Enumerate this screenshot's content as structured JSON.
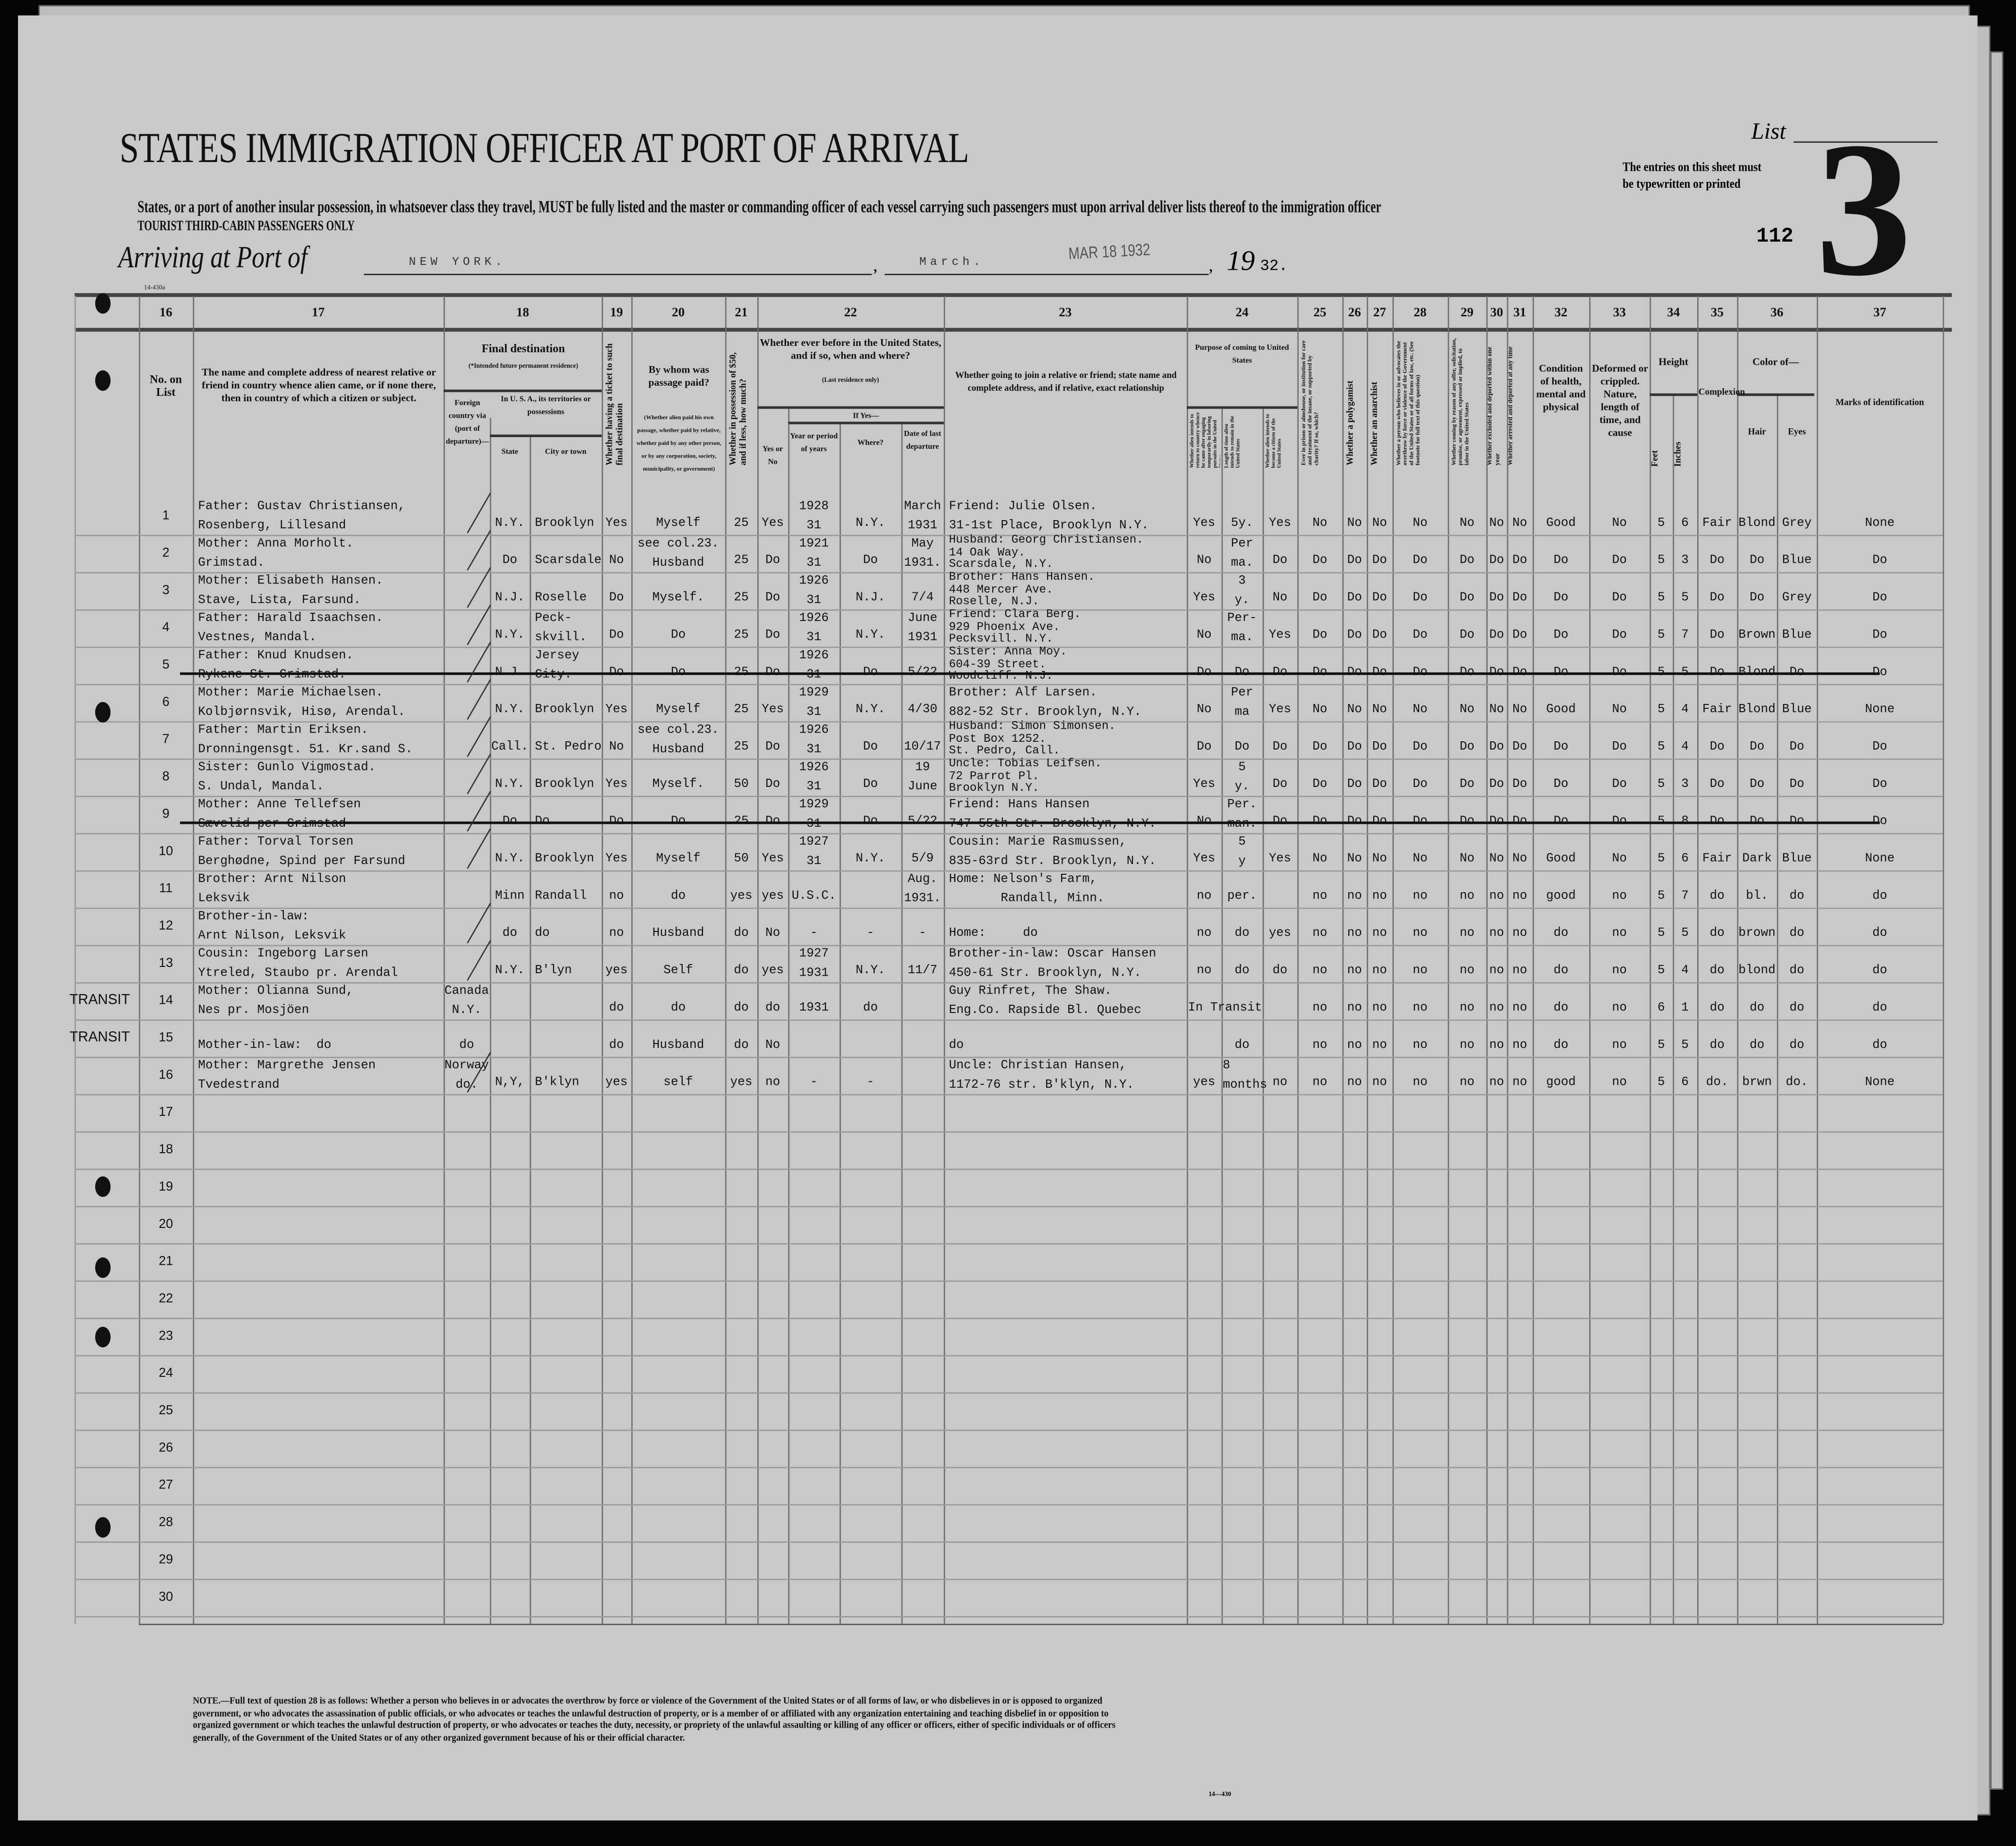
{
  "header": {
    "form_number_top": "14-430a",
    "title": "STATES IMMIGRATION OFFICER AT PORT OF ARRIVAL",
    "instruction": "States, or a port of another insular possession, in whatsoever class they travel, MUST be fully listed and the master or commanding officer of each vessel carrying such passengers must upon arrival deliver lists thereof to the immigration officer",
    "class_line": "TOURIST THIRD-CABIN PASSENGERS ONLY",
    "arriving_label": "Arriving at Port of",
    "port": "NEW YORK.",
    "month": "March.",
    "stamp": "MAR 18 1932",
    "year_prefix": "19",
    "year_suffix": "32.",
    "list_label": "List",
    "list_number": "3",
    "sheet_number": "112",
    "typewritten_note_1": "The entries on this sheet must",
    "typewritten_note_2": "be typewritten or printed"
  },
  "columns": {
    "numbers": [
      "16",
      "17",
      "18",
      "19",
      "20",
      "21",
      "22",
      "23",
      "24",
      "25",
      "26",
      "27",
      "28",
      "29",
      "30",
      "31",
      "32",
      "33",
      "34",
      "35",
      "36",
      "37"
    ],
    "c16": "No. on List",
    "c17": "The name and complete address of nearest relative or friend in country whence alien came, or if none there, then in country of which a citizen or subject.",
    "c18": "Final destination",
    "c18_sub": "(*Intended future permanent residence)",
    "c18_foreign": "Foreign country via (port of departure)—",
    "c18_usa": "In U. S. A., its territories or possessions",
    "c18_state": "State",
    "c18_city": "City or town",
    "c19": "Whether having a ticket to such final destination",
    "c20": "By whom was passage paid?",
    "c20_sub": "(Whether alien paid his own passage, whether paid by relative, whether paid by any other person, or by any corporation, society, municipality, or government)",
    "c21": "Whether in possession of $50, and if less, how much?",
    "c22": "Whether ever before in the United States, and if so, when and where?",
    "c22_sub": "(Last residence only)",
    "c22_yesno": "Yes or No",
    "c22_ifyes": "If Yes—",
    "c22_years": "Year or period of years",
    "c22_where": "Where?",
    "c22_date": "Date of last departure",
    "c23": "Whether going to join a relative or friend; state name and complete address, and if relative, exact relationship",
    "c24": "Purpose of coming to United States",
    "c24_a": "Whether alien intends to return to country whence he came after engaging temporarily in laboring pursuits in the United States",
    "c24_b": "Length of time alien intends to remain in the United States",
    "c24_c": "Whether alien intends to become a citizen of the United States",
    "c25": "Ever in prison or almshouse, or institution for care and treatment of the insane, or supported by charity? If so, which?",
    "c26": "Whether a polygamist",
    "c27": "Whether an anarchist",
    "c28": "Whether a person who believes in or advocates the overthrow by force or violence of the Government of the United States or of all forms of law, etc. (See footnote for full text of this question)",
    "c29": "Whether coming by reason of any offer, solicitation, promise, or agreement, expressed or implied, to labor in the United States",
    "c30": "Whether excluded and deported within one year",
    "c31": "Whether arrested and deported at any time",
    "c32": "Condition of health, mental and physical",
    "c33": "Deformed or crippled. Nature, length of time, and cause",
    "c34": "Height",
    "c34_feet": "Feet",
    "c34_inches": "Inches",
    "c35": "Complexion",
    "c36": "Color of—",
    "c36_hair": "Hair",
    "c36_eyes": "Eyes",
    "c37": "Marks of identification"
  },
  "rows": [
    {
      "no": "1",
      "relative": "Father: Gustav Christiansen,\nRosenberg, Lillesand",
      "foreign": "",
      "state": "N.Y.",
      "city": "Brooklyn",
      "ticket": "Yes",
      "paid_by": "Myself",
      "money": "25",
      "before": "Yes",
      "years": "1928\n31",
      "where": "N.Y.",
      "departed": "March\n1931",
      "joining": "Friend: Julie Olsen.\n31-1st Place, Brooklyn N.Y.",
      "p24_return": "Yes",
      "p24_length": "5y.",
      "p24_citizen": "Yes",
      "c25": "No",
      "c26": "No",
      "c27": "No",
      "c28": "No",
      "c29": "No",
      "c30": "No",
      "c31": "No",
      "health": "Good",
      "deformed": "No",
      "feet": "5",
      "inches": "6",
      "complexion": "Fair",
      "hair": "Blond",
      "eyes": "Grey",
      "marks": "None"
    },
    {
      "no": "2",
      "relative": "Mother: Anna Morholt.\nGrimstad.",
      "foreign": "",
      "state": "Do",
      "city": "Scarsdale",
      "ticket": "No",
      "paid_by": "see col.23.\nHusband",
      "money": "25",
      "before": "Do",
      "years": "1921\n31",
      "where": "Do",
      "departed": "May\n1931.",
      "joining": "Husband: Georg Christiansen.\n14 Oak Way.\nScarsdale, N.Y.",
      "p24_return": "No",
      "p24_length": "Per\nma.",
      "p24_citizen": "Do",
      "c25": "Do",
      "c26": "Do",
      "c27": "Do",
      "c28": "Do",
      "c29": "Do",
      "c30": "Do",
      "c31": "Do",
      "health": "Do",
      "deformed": "Do",
      "feet": "5",
      "inches": "3",
      "complexion": "Do",
      "hair": "Do",
      "eyes": "Blue",
      "marks": "Do"
    },
    {
      "no": "3",
      "relative": "Mother: Elisabeth Hansen.\nStave, Lista, Farsund.",
      "foreign": "",
      "state": "N.J.",
      "city": "Roselle",
      "ticket": "Do",
      "paid_by": "Myself.",
      "money": "25",
      "before": "Do",
      "years": "1926\n31",
      "where": "N.J.",
      "departed": "7/4",
      "joining": "Brother: Hans Hansen.\n448 Mercer Ave.\nRoselle, N.J.",
      "p24_return": "Yes",
      "p24_length": "3\ny.",
      "p24_citizen": "No",
      "c25": "Do",
      "c26": "Do",
      "c27": "Do",
      "c28": "Do",
      "c29": "Do",
      "c30": "Do",
      "c31": "Do",
      "health": "Do",
      "deformed": "Do",
      "feet": "5",
      "inches": "5",
      "complexion": "Do",
      "hair": "Do",
      "eyes": "Grey",
      "marks": "Do"
    },
    {
      "no": "4",
      "relative": "Father: Harald Isaachsen.\nVestnes, Mandal.",
      "foreign": "",
      "state": "N.Y.",
      "city": "Peck-\nskvill.",
      "ticket": "Do",
      "paid_by": "Do",
      "money": "25",
      "before": "Do",
      "years": "1926\n31",
      "where": "N.Y.",
      "departed": "June\n1931",
      "joining": "Friend: Clara Berg.\n929 Phoenix Ave.\nPecksvill. N.Y.",
      "p24_return": "No",
      "p24_length": "Per-\nma.",
      "p24_citizen": "Yes",
      "c25": "Do",
      "c26": "Do",
      "c27": "Do",
      "c28": "Do",
      "c29": "Do",
      "c30": "Do",
      "c31": "Do",
      "health": "Do",
      "deformed": "Do",
      "feet": "5",
      "inches": "7",
      "complexion": "Do",
      "hair": "Brown",
      "eyes": "Blue",
      "marks": "Do"
    },
    {
      "no": "5",
      "struck": true,
      "relative": "Father: Knud Knudsen.\nRykene St. Grimstad.",
      "foreign": "",
      "state": "N.J.",
      "city": "Jersey\nCity.",
      "ticket": "Do",
      "paid_by": "Do",
      "money": "25",
      "before": "Do",
      "years": "1926\n31",
      "where": "Do",
      "departed": "5/22",
      "joining": "Sister: Anna Moy.\n604-39 Street.\nWoodcliff. N.J.",
      "p24_return": "Do",
      "p24_length": "Do",
      "p24_citizen": "Do",
      "c25": "Do",
      "c26": "Do",
      "c27": "Do",
      "c28": "Do",
      "c29": "Do",
      "c30": "Do",
      "c31": "Do",
      "health": "Do",
      "deformed": "Do",
      "feet": "5",
      "inches": "5",
      "complexion": "Do",
      "hair": "Blond",
      "eyes": "Do",
      "marks": "Do"
    },
    {
      "no": "6",
      "relative": "Mother: Marie Michaelsen.\nKolbjørnsvik, Hisø, Arendal.",
      "foreign": "",
      "state": "N.Y.",
      "city": "Brooklyn",
      "ticket": "Yes",
      "paid_by": "Myself",
      "money": "25",
      "before": "Yes",
      "years": "1929\n31",
      "where": "N.Y.",
      "departed": "4/30",
      "joining": "Brother: Alf Larsen.\n882-52 Str. Brooklyn, N.Y.",
      "p24_return": "No",
      "p24_length": "Per\nma",
      "p24_citizen": "Yes",
      "c25": "No",
      "c26": "No",
      "c27": "No",
      "c28": "No",
      "c29": "No",
      "c30": "No",
      "c31": "No",
      "health": "Good",
      "deformed": "No",
      "feet": "5",
      "inches": "4",
      "complexion": "Fair",
      "hair": "Blond",
      "eyes": "Blue",
      "marks": "None"
    },
    {
      "no": "7",
      "relative": "Father: Martin Eriksen.\nDronningensgt. 51. Kr.sand S.",
      "foreign": "",
      "state": "Call.",
      "city": "St. Pedro",
      "ticket": "No",
      "paid_by": "see col.23.\nHusband",
      "money": "25",
      "before": "Do",
      "years": "1926\n31",
      "where": "Do",
      "departed": "10/17",
      "joining": "Husband: Simon Simonsen.\nPost Box 1252.\nSt. Pedro, Call.",
      "p24_return": "Do",
      "p24_length": "Do",
      "p24_citizen": "Do",
      "c25": "Do",
      "c26": "Do",
      "c27": "Do",
      "c28": "Do",
      "c29": "Do",
      "c30": "Do",
      "c31": "Do",
      "health": "Do",
      "deformed": "Do",
      "feet": "5",
      "inches": "4",
      "complexion": "Do",
      "hair": "Do",
      "eyes": "Do",
      "marks": "Do"
    },
    {
      "no": "8",
      "relative": "Sister: Gunlo Vigmostad.\nS. Undal, Mandal.",
      "foreign": "",
      "state": "N.Y.",
      "city": "Brooklyn",
      "ticket": "Yes",
      "paid_by": "Myself.",
      "money": "50",
      "before": "Do",
      "years": "1926\n31",
      "where": "Do",
      "departed": "19\nJune",
      "joining": "Uncle: Tobias Leifsen.\n72 Parrot Pl.\nBrooklyn N.Y.",
      "p24_return": "Yes",
      "p24_length": "5\ny.",
      "p24_citizen": "Do",
      "c25": "Do",
      "c26": "Do",
      "c27": "Do",
      "c28": "Do",
      "c29": "Do",
      "c30": "Do",
      "c31": "Do",
      "health": "Do",
      "deformed": "Do",
      "feet": "5",
      "inches": "3",
      "complexion": "Do",
      "hair": "Do",
      "eyes": "Do",
      "marks": "Do"
    },
    {
      "no": "9",
      "struck": true,
      "relative": "Mother: Anne Tellefsen\nSævelid per Grimstad",
      "foreign": "",
      "state": "Do",
      "city": "Do",
      "ticket": "Do",
      "paid_by": "Do",
      "money": "25",
      "before": "Do",
      "years": "1929\n31",
      "where": "Do",
      "departed": "5/22",
      "joining": "Friend: Hans Hansen\n747-55th Str. Brooklyn, N.Y.",
      "p24_return": "No",
      "p24_length": "Per.\nman.",
      "p24_citizen": "Do",
      "c25": "Do",
      "c26": "Do",
      "c27": "Do",
      "c28": "Do",
      "c29": "Do",
      "c30": "Do",
      "c31": "Do",
      "health": "Do",
      "deformed": "Do",
      "feet": "5",
      "inches": "8",
      "complexion": "Do",
      "hair": "Do",
      "eyes": "Do",
      "marks": "Do"
    },
    {
      "no": "10",
      "relative": "Father: Torval Torsen\nBerghødne, Spind per Farsund",
      "foreign": "",
      "state": "N.Y.",
      "city": "Brooklyn",
      "ticket": "Yes",
      "paid_by": "Myself",
      "money": "50",
      "before": "Yes",
      "years": "1927\n31",
      "where": "N.Y.",
      "departed": "5/9",
      "joining": "Cousin: Marie Rasmussen,\n835-63rd Str. Brooklyn, N.Y.",
      "p24_return": "Yes",
      "p24_length": "5\ny",
      "p24_citizen": "Yes",
      "c25": "No",
      "c26": "No",
      "c27": "No",
      "c28": "No",
      "c29": "No",
      "c30": "No",
      "c31": "No",
      "health": "Good",
      "deformed": "No",
      "feet": "5",
      "inches": "6",
      "complexion": "Fair",
      "hair": "Dark",
      "eyes": "Blue",
      "marks": "None"
    },
    {
      "no": "11",
      "relative": "Brother: Arnt Nilson\nLeksvik",
      "foreign": "",
      "state": "Minn",
      "city": "Randall",
      "ticket": "no",
      "paid_by": "do",
      "money": "yes",
      "before": "yes",
      "years": "U.S.C.",
      "where": "",
      "departed": "Aug.\n1931.",
      "joining": "Home: Nelson's Farm,\n       Randall, Minn.",
      "p24_return": "no",
      "p24_length": "per.",
      "p24_citizen": "",
      "c25": "no",
      "c26": "no",
      "c27": "no",
      "c28": "no",
      "c29": "no",
      "c30": "no",
      "c31": "no",
      "health": "good",
      "deformed": "no",
      "feet": "5",
      "inches": "7",
      "complexion": "do",
      "hair": "bl.",
      "eyes": "do",
      "marks": "do"
    },
    {
      "no": "12",
      "relative": "Brother-in-law:\nArnt Nilson, Leksvik",
      "foreign": "",
      "state": "do",
      "city": "do",
      "ticket": "no",
      "paid_by": "Husband",
      "money": "do",
      "before": "No",
      "years": "-",
      "where": "-",
      "departed": "-",
      "joining": "Home:     do",
      "p24_return": "no",
      "p24_length": "do",
      "p24_citizen": "yes",
      "c25": "no",
      "c26": "no",
      "c27": "no",
      "c28": "no",
      "c29": "no",
      "c30": "no",
      "c31": "no",
      "health": "do",
      "deformed": "no",
      "feet": "5",
      "inches": "5",
      "complexion": "do",
      "hair": "brown",
      "eyes": "do",
      "marks": "do"
    },
    {
      "no": "13",
      "relative": "Cousin: Ingeborg Larsen\nYtreled, Staubo pr. Arendal",
      "foreign": "",
      "state": "N.Y.",
      "city": "B'lyn",
      "ticket": "yes",
      "paid_by": "Self",
      "money": "do",
      "before": "yes",
      "years": "1927\n1931",
      "where": "N.Y.",
      "departed": "11/7",
      "joining": "Brother-in-law: Oscar Hansen\n450-61 Str. Brooklyn, N.Y.",
      "p24_return": "no",
      "p24_length": "do",
      "p24_citizen": "do",
      "c25": "no",
      "c26": "no",
      "c27": "no",
      "c28": "no",
      "c29": "no",
      "c30": "no",
      "c31": "no",
      "health": "do",
      "deformed": "no",
      "feet": "5",
      "inches": "4",
      "complexion": "do",
      "hair": "blond",
      "eyes": "do",
      "marks": "do"
    },
    {
      "no": "14",
      "margin": "TRANSIT",
      "relative": "Mother: Olianna Sund,\nNes pr. Mosjöen",
      "foreign": "Canada\nN.Y.",
      "state": "",
      "city": "",
      "ticket": "do",
      "paid_by": "do",
      "money": "do",
      "before": "do",
      "years": "1931",
      "where": "do",
      "departed": "",
      "joining": "Guy Rinfret, The Shaw.\nEng.Co. Rapside Bl. Quebec",
      "p24_return": "In Transit",
      "p24_length": "",
      "p24_citizen": "",
      "c25": "no",
      "c26": "no",
      "c27": "no",
      "c28": "no",
      "c29": "no",
      "c30": "no",
      "c31": "no",
      "health": "do",
      "deformed": "no",
      "feet": "6",
      "inches": "1",
      "complexion": "do",
      "hair": "do",
      "eyes": "do",
      "marks": "do"
    },
    {
      "no": "15",
      "margin": "TRANSIT",
      "relative": "Mother-in-law:  do",
      "foreign": "do",
      "state": "",
      "city": "",
      "ticket": "do",
      "paid_by": "Husband",
      "money": "do",
      "before": "No",
      "years": "",
      "where": "",
      "departed": "",
      "joining": "do",
      "p24_return": "",
      "p24_length": "do",
      "p24_citizen": "",
      "c25": "no",
      "c26": "no",
      "c27": "no",
      "c28": "no",
      "c29": "no",
      "c30": "no",
      "c31": "no",
      "health": "do",
      "deformed": "no",
      "feet": "5",
      "inches": "5",
      "complexion": "do",
      "hair": "do",
      "eyes": "do",
      "marks": "do"
    },
    {
      "no": "16",
      "relative": "Mother: Margrethe Jensen\nTvedestrand",
      "foreign": "Norway\ndo.",
      "state": "N,Y,",
      "city": "B'klyn",
      "ticket": "yes",
      "paid_by": "self",
      "money": "yes",
      "before": "no",
      "years": "-",
      "where": "-",
      "departed": "",
      "joining": "Uncle: Christian Hansen,\n1172-76 str. B'klyn, N.Y.",
      "p24_return": "yes",
      "p24_length": "8\nmonths",
      "p24_citizen": "no",
      "c25": "no",
      "c26": "no",
      "c27": "no",
      "c28": "no",
      "c29": "no",
      "c30": "no",
      "c31": "no",
      "health": "good",
      "deformed": "no",
      "feet": "5",
      "inches": "6",
      "complexion": "do.",
      "hair": "brwn",
      "eyes": "do.",
      "marks": "None"
    },
    {
      "no": "17"
    },
    {
      "no": "18"
    },
    {
      "no": "19"
    },
    {
      "no": "20"
    },
    {
      "no": "21"
    },
    {
      "no": "22"
    },
    {
      "no": "23"
    },
    {
      "no": "24"
    },
    {
      "no": "25"
    },
    {
      "no": "26"
    },
    {
      "no": "27"
    },
    {
      "no": "28"
    },
    {
      "no": "29"
    },
    {
      "no": "30"
    }
  ],
  "footer": {
    "note": "NOTE.—Full text of question 28 is as follows: Whether a person who believes in or advocates the overthrow by force or violence of the Government of the United States or of all forms of law, or who disbelieves in or is opposed to organized government, or who advocates the assassination of public officials, or who advocates or teaches the unlawful destruction of property, or is a member of or affiliated with any organization entertaining and teaching disbelief in or opposition to organized government or which teaches the unlawful destruction of property, or who advocates or teaches the duty, necessity, or propriety of the unlawful assaulting or killing of any officer or officers, either of specific individuals or of officers generally, of the Government of the United States or of any other organized government because of his or their official character.",
    "form_number": "14—430"
  },
  "colors": {
    "paper": "#c9c9c9",
    "ink": "#121212",
    "background": "#050505"
  }
}
